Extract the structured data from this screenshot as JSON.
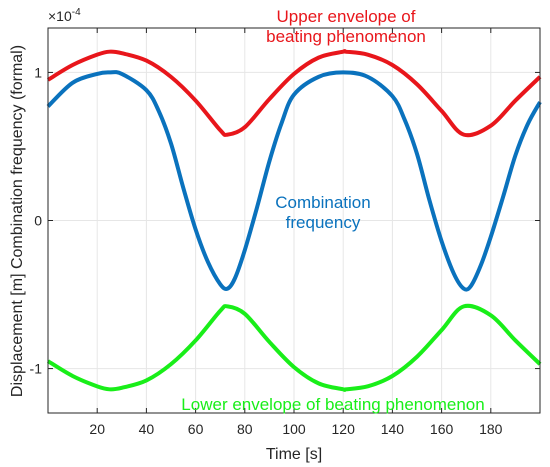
{
  "chart_data": {
    "type": "line",
    "xlabel": "Time [s]",
    "ylabel": "Displacement [m] Combination frequency (formal)",
    "exponent_base": "×10",
    "exponent_power": "-4",
    "xlim": [
      0,
      200
    ],
    "ylim": [
      -1.3,
      1.3
    ],
    "x_ticks": [
      20,
      40,
      60,
      80,
      100,
      120,
      140,
      160,
      180
    ],
    "y_ticks": [
      -1,
      0,
      1
    ],
    "grid": true,
    "series": [
      {
        "name": "Upper envelope of beating phenomenon",
        "color": "#e8161b",
        "x": [
          0,
          10,
          20,
          25,
          30,
          40,
          50,
          60,
          70,
          73,
          80,
          90,
          100,
          110,
          120,
          121,
          130,
          140,
          150,
          160,
          169,
          180,
          190,
          200
        ],
        "values": [
          0.95,
          1.05,
          1.12,
          1.14,
          1.13,
          1.08,
          0.97,
          0.81,
          0.61,
          0.58,
          0.63,
          0.82,
          0.99,
          1.1,
          1.14,
          1.14,
          1.12,
          1.05,
          0.92,
          0.74,
          0.58,
          0.64,
          0.81,
          0.97
        ]
      },
      {
        "name": "Combination frequency",
        "color": "#0a72bd",
        "x": [
          0,
          10,
          20,
          25,
          30,
          40,
          45,
          50,
          55,
          60,
          65,
          70,
          73,
          76,
          80,
          85,
          90,
          95,
          100,
          110,
          120,
          130,
          140,
          145,
          150,
          155,
          160,
          165,
          169,
          172,
          176,
          180,
          185,
          190,
          195,
          200
        ],
        "values": [
          0.77,
          0.93,
          0.99,
          1.0,
          0.99,
          0.88,
          0.74,
          0.52,
          0.22,
          -0.06,
          -0.28,
          -0.43,
          -0.46,
          -0.39,
          -0.2,
          0.09,
          0.4,
          0.66,
          0.85,
          0.97,
          1.0,
          0.97,
          0.84,
          0.68,
          0.45,
          0.14,
          -0.14,
          -0.36,
          -0.46,
          -0.44,
          -0.3,
          -0.11,
          0.16,
          0.44,
          0.65,
          0.8
        ]
      },
      {
        "name": "Lower envelope of beating phenomenon",
        "color": "#19ee19",
        "x": [
          0,
          10,
          20,
          25,
          30,
          40,
          50,
          60,
          70,
          73,
          80,
          90,
          100,
          110,
          120,
          121,
          130,
          140,
          150,
          160,
          169,
          180,
          190,
          200
        ],
        "values": [
          -0.95,
          -1.05,
          -1.12,
          -1.14,
          -1.13,
          -1.08,
          -0.97,
          -0.81,
          -0.61,
          -0.58,
          -0.63,
          -0.82,
          -0.99,
          -1.1,
          -1.14,
          -1.14,
          -1.12,
          -1.05,
          -0.92,
          -0.74,
          -0.58,
          -0.64,
          -0.81,
          -0.97
        ]
      }
    ],
    "annotations": {
      "upper_line1": "Upper envelope of",
      "upper_line2": "beating phenomenon",
      "combo_line1": "Combination",
      "combo_line2": "frequency",
      "lower": "Lower envelope of beating phenomenon"
    }
  }
}
